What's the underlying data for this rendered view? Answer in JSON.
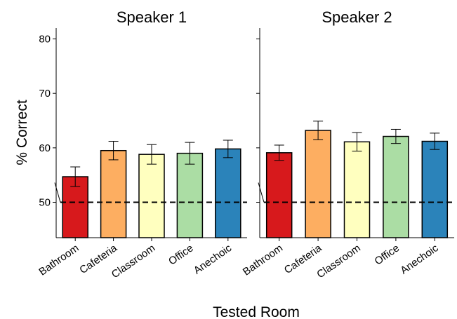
{
  "chart_data": {
    "type": "bar",
    "xlabel": "Tested Room",
    "ylabel": "% Correct",
    "ylim": [
      43.5,
      82
    ],
    "yticks": [
      50,
      60,
      70,
      80
    ],
    "categories": [
      "Bathroom",
      "Cafeteria",
      "Classroom",
      "Office",
      "Anechoic"
    ],
    "colors": [
      "#d7191c",
      "#fdae61",
      "#ffffbf",
      "#abdda4",
      "#2b83ba"
    ],
    "reference_line": 50,
    "grid": false,
    "panels": [
      {
        "title": "Speaker 1",
        "values": [
          54.7,
          59.5,
          58.8,
          59.0,
          59.8
        ],
        "errors": [
          1.8,
          1.7,
          1.8,
          2.0,
          1.6
        ]
      },
      {
        "title": "Speaker 2",
        "values": [
          59.1,
          63.2,
          61.1,
          62.1,
          61.2
        ],
        "errors": [
          1.4,
          1.7,
          1.7,
          1.3,
          1.5
        ]
      }
    ]
  }
}
